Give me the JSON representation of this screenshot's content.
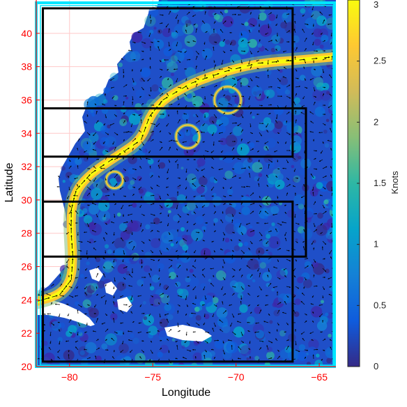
{
  "chart_data": {
    "type": "map",
    "xlabel": "Longitude",
    "ylabel": "Latitude",
    "xlim": [
      -82,
      -64
    ],
    "ylim": [
      20,
      42
    ],
    "x_ticks": [
      -80,
      -75,
      -70,
      -65
    ],
    "y_ticks": [
      20,
      22,
      24,
      26,
      28,
      30,
      32,
      34,
      36,
      38,
      40
    ],
    "grid": true,
    "axis_color": "#ff0000",
    "grid_color": "#ffc8c8",
    "frame_color": "#00e5ff",
    "box_color": "#000000",
    "colorbar": {
      "label": "Knots",
      "range": [
        0,
        3
      ],
      "ticks": [
        "0",
        "0.5",
        "1",
        "1.5",
        "2",
        "2.5",
        "3"
      ],
      "colormap": "parula",
      "colors": [
        "#352a87",
        "#0f5cdd",
        "#1481d6",
        "#06a4ca",
        "#2eb7a4",
        "#87bf77",
        "#d1bb59",
        "#fec832",
        "#f9fb0e"
      ]
    },
    "boxes": [
      {
        "lon": [
          -81.6,
          -66.6
        ],
        "lat": [
          32.6,
          41.5
        ]
      },
      {
        "lon": [
          -81.6,
          -65.8
        ],
        "lat": [
          26.6,
          35.5
        ]
      },
      {
        "lon": [
          -81.6,
          -66.6
        ],
        "lat": [
          20.3,
          29.9
        ]
      }
    ],
    "gulf_stream_path": [
      [
        -82,
        23.9
      ],
      [
        -80.6,
        24.3
      ],
      [
        -79.9,
        25.2
      ],
      [
        -79.8,
        26.6
      ],
      [
        -79.9,
        28.0
      ],
      [
        -79.9,
        29.4
      ],
      [
        -79.6,
        30.6
      ],
      [
        -78.7,
        31.6
      ],
      [
        -77.2,
        32.6
      ],
      [
        -75.7,
        33.6
      ],
      [
        -75.2,
        35.0
      ],
      [
        -74.4,
        36.0
      ],
      [
        -72.7,
        37.0
      ],
      [
        -70.7,
        37.7
      ],
      [
        -68.7,
        38.2
      ],
      [
        -66.2,
        38.4
      ],
      [
        -64,
        38.6
      ]
    ],
    "eddies": [
      {
        "lon": -72.9,
        "lat": 33.8,
        "r": 0.7
      },
      {
        "lon": -77.3,
        "lat": 31.2,
        "r": 0.5
      },
      {
        "lon": -70.5,
        "lat": 36.0,
        "r": 0.8
      }
    ]
  }
}
